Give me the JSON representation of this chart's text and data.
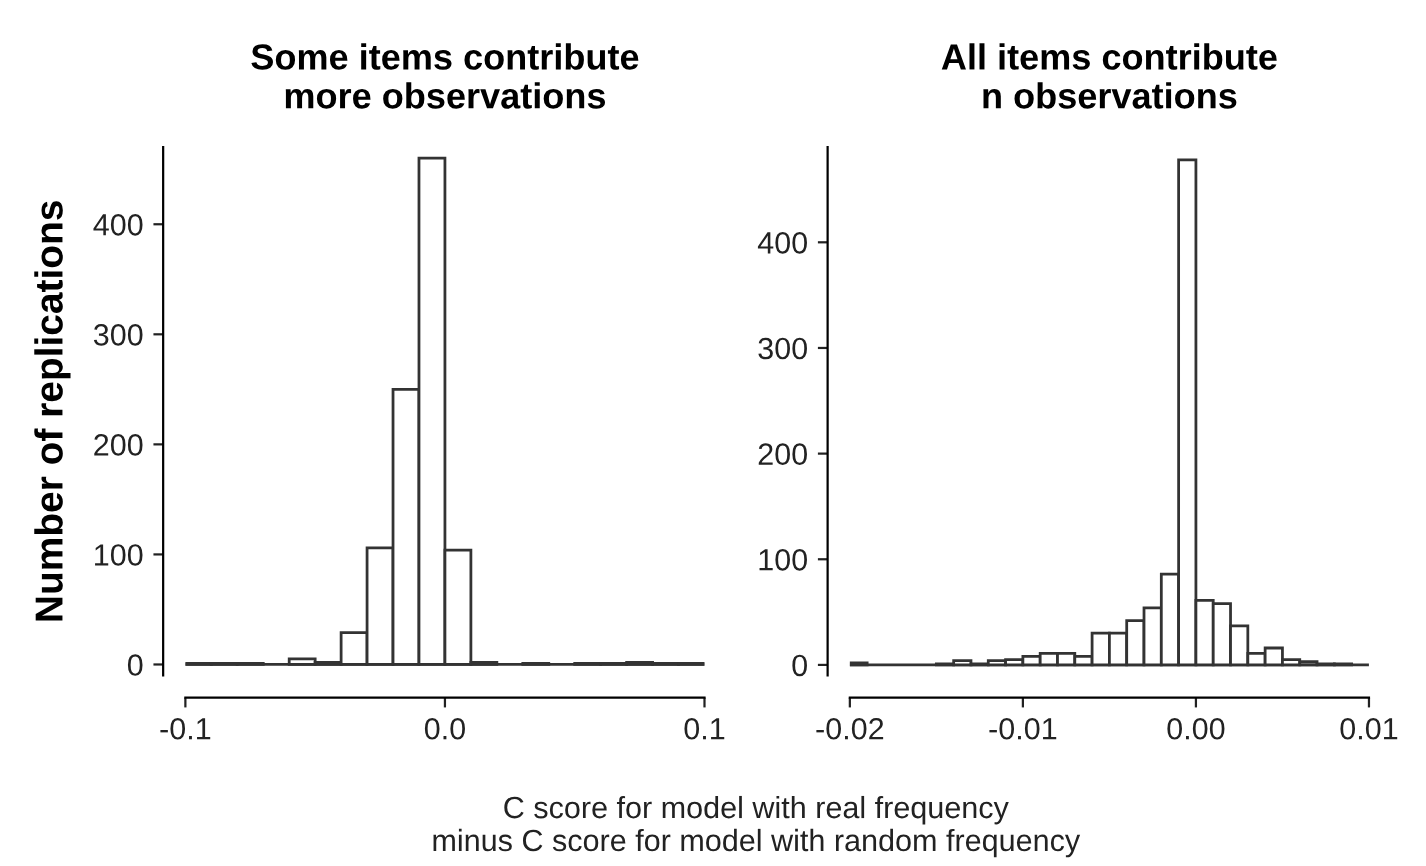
{
  "chart_data": [
    {
      "type": "histogram",
      "title": "Some items contribute\nmore observations",
      "ylabel": "Number of replications",
      "xlabel": "C score for model with real frequency\nminus C score for model with random frequency",
      "bins": [
        -0.1,
        -0.09,
        -0.08,
        -0.07,
        -0.06,
        -0.05,
        -0.04,
        -0.03,
        -0.02,
        -0.01,
        0.0,
        0.01,
        0.02,
        0.03,
        0.04,
        0.05,
        0.06,
        0.07,
        0.08,
        0.09,
        0.1
      ],
      "values": [
        1,
        1,
        1,
        0,
        5,
        2,
        29,
        106,
        250,
        460,
        104,
        2,
        0,
        1,
        0,
        1,
        1,
        2,
        1,
        1
      ],
      "color": "#ffffff",
      "xlim": [
        -0.1,
        0.1
      ],
      "xticks": [
        {
          "value": -0.1,
          "label": "-0.1"
        },
        {
          "value": 0.0,
          "label": "0.0"
        },
        {
          "value": 0.1,
          "label": "0.1"
        }
      ],
      "ylim": [
        -10,
        470
      ],
      "yticks": [
        0,
        100,
        200,
        300,
        400
      ]
    },
    {
      "type": "histogram",
      "title": "All items contribute\nn observations",
      "bins": [
        -0.02,
        -0.019,
        -0.018,
        -0.017,
        -0.016,
        -0.015,
        -0.014,
        -0.013,
        -0.012,
        -0.011,
        -0.01,
        -0.009,
        -0.008,
        -0.007,
        -0.006,
        -0.005,
        -0.004,
        -0.003,
        -0.002,
        -0.001,
        0.0,
        0.001,
        0.002,
        0.003,
        0.004,
        0.005,
        0.006,
        0.007,
        0.008,
        0.009,
        0.01
      ],
      "values": [
        2,
        0,
        0,
        0,
        0,
        1,
        4,
        1,
        4,
        5,
        8,
        11,
        11,
        8,
        30,
        30,
        42,
        54,
        86,
        478,
        61,
        58,
        37,
        11,
        16,
        5,
        3,
        1,
        1,
        0
      ],
      "color": "#ffffff",
      "xlim": [
        -0.02,
        0.01
      ],
      "xticks": [
        {
          "value": -0.02,
          "label": "-0.02"
        },
        {
          "value": -0.01,
          "label": "-0.01"
        },
        {
          "value": 0.0,
          "label": "0.00"
        },
        {
          "value": 0.01,
          "label": "0.01"
        }
      ],
      "ylim": [
        -10,
        490
      ],
      "yticks": [
        0,
        100,
        200,
        300,
        400
      ]
    }
  ]
}
